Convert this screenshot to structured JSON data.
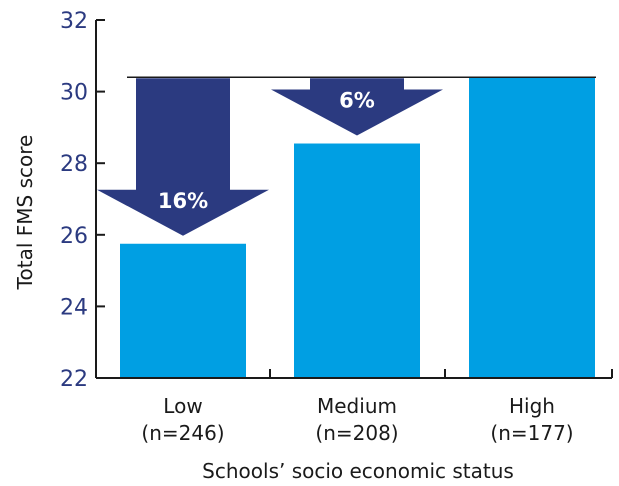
{
  "chart_data": {
    "type": "bar",
    "categories": [
      "Low",
      "Medium",
      "High"
    ],
    "category_counts": [
      "(n=246)",
      "(n=208)",
      "(n=177)"
    ],
    "values": [
      25.75,
      28.55,
      30.4
    ],
    "title": "",
    "xlabel": "Schools’ socio economic status",
    "ylabel": "Total FMS score",
    "ylim": [
      22,
      32
    ],
    "yticks": [
      "22",
      "24",
      "26",
      "28",
      "30",
      "32"
    ],
    "grid": false,
    "bar_color": "#009fe3",
    "annotations": [
      {
        "category": "Low",
        "text": "16%",
        "from": 30.4,
        "to": 25.75
      },
      {
        "category": "Medium",
        "text": "6%",
        "from": 30.4,
        "to": 28.55
      }
    ],
    "reference_line": {
      "value": 30.4,
      "color": "#1a1a1a"
    },
    "arrow_color": "#2b3a80",
    "axis_color": "#1a1a1a"
  }
}
